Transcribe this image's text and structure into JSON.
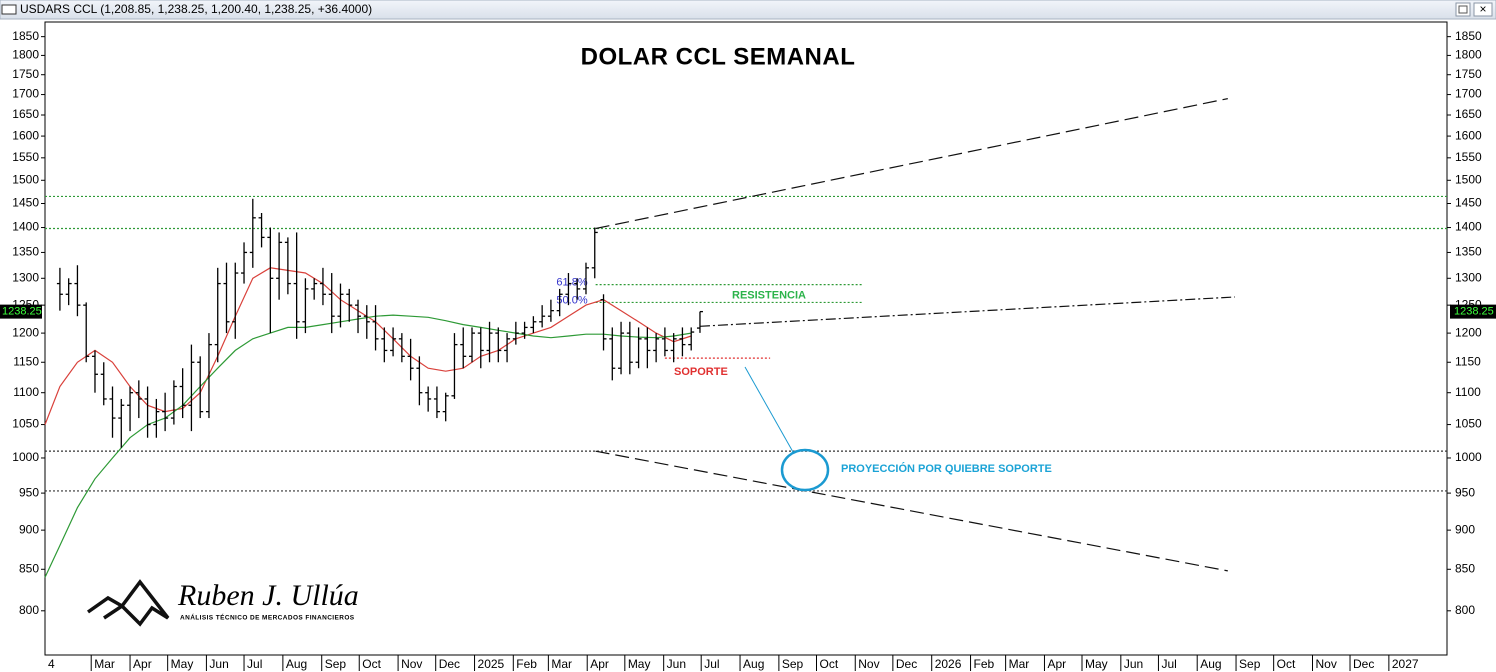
{
  "chart_data": {
    "type": "ohlc",
    "header": "USDARS CCL (1,208.85, 1,238.25, 1,200.40, 1,238.25, +36.4000)",
    "title": "DOLAR CCL SEMANAL",
    "log_scale": true,
    "ylim": [
      750,
      1890
    ],
    "yticks": [
      800,
      850,
      900,
      950,
      1000,
      1050,
      1100,
      1150,
      1200,
      1250,
      1300,
      1350,
      1400,
      1450,
      1500,
      1550,
      1600,
      1650,
      1700,
      1750,
      1800,
      1850
    ],
    "xlim": [
      3.3,
      163.2
    ],
    "xticks": [
      {
        "value": 0,
        "label": "4"
      },
      {
        "value": 8.57,
        "label": "Mar"
      },
      {
        "value": 13,
        "label": "Apr"
      },
      {
        "value": 17.29,
        "label": "May"
      },
      {
        "value": 21.71,
        "label": "Jun"
      },
      {
        "value": 26,
        "label": "Jul"
      },
      {
        "value": 30.43,
        "label": "Aug"
      },
      {
        "value": 34.86,
        "label": "Sep"
      },
      {
        "value": 39.14,
        "label": "Oct"
      },
      {
        "value": 43.57,
        "label": "Nov"
      },
      {
        "value": 47.86,
        "label": "Dec"
      },
      {
        "value": 52.29,
        "label": "2025"
      },
      {
        "value": 56.71,
        "label": "Feb"
      },
      {
        "value": 60.71,
        "label": "Mar"
      },
      {
        "value": 65.14,
        "label": "Apr"
      },
      {
        "value": 69.43,
        "label": "May"
      },
      {
        "value": 73.86,
        "label": "Jun"
      },
      {
        "value": 78.14,
        "label": "Jul"
      },
      {
        "value": 82.57,
        "label": "Aug"
      },
      {
        "value": 87,
        "label": "Sep"
      },
      {
        "value": 91.29,
        "label": "Oct"
      },
      {
        "value": 95.71,
        "label": "Nov"
      },
      {
        "value": 100,
        "label": "Dec"
      },
      {
        "value": 104.43,
        "label": "2026"
      },
      {
        "value": 108.86,
        "label": "Feb"
      },
      {
        "value": 112.86,
        "label": "Mar"
      },
      {
        "value": 117.29,
        "label": "Apr"
      },
      {
        "value": 121.57,
        "label": "May"
      },
      {
        "value": 126,
        "label": "Jun"
      },
      {
        "value": 130.29,
        "label": "Jul"
      },
      {
        "value": 134.71,
        "label": "Aug"
      },
      {
        "value": 139.14,
        "label": "Sep"
      },
      {
        "value": 143.43,
        "label": "Oct"
      },
      {
        "value": 147.86,
        "label": "Nov"
      },
      {
        "value": 152.14,
        "label": "Dec"
      },
      {
        "value": 156.57,
        "label": "2027"
      }
    ],
    "bar_color": "#000000",
    "ohlc": {
      "x": [
        5,
        6,
        7,
        8,
        9,
        10,
        11,
        12,
        13,
        14,
        15,
        16,
        17,
        18,
        19,
        20,
        21,
        22,
        23,
        24,
        25,
        26,
        27,
        28,
        29,
        30,
        31,
        32,
        33,
        34,
        35,
        36,
        37,
        38,
        39,
        40,
        41,
        42,
        43,
        44,
        45,
        46,
        47,
        48,
        49,
        50,
        51,
        52,
        53,
        54,
        55,
        56,
        57,
        58,
        59,
        60,
        61,
        62,
        63,
        64,
        65,
        66,
        67,
        68,
        69,
        70,
        71,
        72,
        73,
        74,
        75,
        76,
        77,
        78
      ],
      "open": [
        1290,
        1270,
        1290,
        1250,
        1160,
        1130,
        1090,
        1060,
        1080,
        1100,
        1090,
        1050,
        1070,
        1060,
        1110,
        1080,
        1150,
        1070,
        1180,
        1290,
        1220,
        1310,
        1350,
        1420,
        1380,
        1300,
        1370,
        1290,
        1220,
        1280,
        1290,
        1270,
        1230,
        1270,
        1250,
        1230,
        1220,
        1190,
        1170,
        1190,
        1160,
        1140,
        1100,
        1090,
        1070,
        1095,
        1180,
        1160,
        1200,
        1170,
        1200,
        1170,
        1190,
        1200,
        1210,
        1220,
        1230,
        1240,
        1270,
        1290,
        1280,
        1320,
        1260,
        1190,
        1140,
        1200,
        1150,
        1190,
        1170,
        1190,
        1170,
        1190,
        1180,
        1208.85
      ],
      "high": [
        1320,
        1300,
        1325,
        1255,
        1170,
        1150,
        1110,
        1090,
        1110,
        1120,
        1110,
        1090,
        1100,
        1120,
        1140,
        1180,
        1160,
        1200,
        1320,
        1330,
        1330,
        1370,
        1460,
        1430,
        1400,
        1390,
        1380,
        1390,
        1300,
        1300,
        1320,
        1310,
        1290,
        1280,
        1260,
        1250,
        1250,
        1210,
        1210,
        1200,
        1190,
        1160,
        1110,
        1110,
        1100,
        1200,
        1210,
        1210,
        1210,
        1220,
        1210,
        1200,
        1220,
        1220,
        1230,
        1250,
        1260,
        1280,
        1310,
        1300,
        1330,
        1400,
        1270,
        1210,
        1220,
        1220,
        1210,
        1210,
        1200,
        1210,
        1200,
        1210,
        1210,
        1238.25
      ],
      "low": [
        1240,
        1250,
        1230,
        1150,
        1100,
        1080,
        1030,
        1015,
        1040,
        1060,
        1030,
        1030,
        1040,
        1050,
        1060,
        1040,
        1060,
        1060,
        1150,
        1200,
        1190,
        1290,
        1320,
        1360,
        1200,
        1260,
        1270,
        1190,
        1200,
        1260,
        1250,
        1200,
        1210,
        1220,
        1200,
        1190,
        1170,
        1150,
        1160,
        1150,
        1120,
        1080,
        1070,
        1060,
        1055,
        1090,
        1140,
        1150,
        1140,
        1150,
        1150,
        1150,
        1180,
        1190,
        1200,
        1210,
        1220,
        1230,
        1250,
        1260,
        1270,
        1300,
        1170,
        1120,
        1130,
        1130,
        1140,
        1140,
        1150,
        1160,
        1150,
        1160,
        1170,
        1200.4
      ],
      "close": [
        1270,
        1290,
        1250,
        1160,
        1130,
        1090,
        1060,
        1080,
        1100,
        1090,
        1050,
        1070,
        1060,
        1110,
        1080,
        1150,
        1070,
        1180,
        1290,
        1220,
        1310,
        1350,
        1420,
        1380,
        1300,
        1370,
        1290,
        1220,
        1280,
        1290,
        1270,
        1230,
        1270,
        1250,
        1230,
        1220,
        1190,
        1170,
        1190,
        1160,
        1140,
        1100,
        1090,
        1070,
        1095,
        1180,
        1160,
        1200,
        1170,
        1200,
        1170,
        1190,
        1200,
        1210,
        1220,
        1230,
        1240,
        1270,
        1290,
        1280,
        1320,
        1390,
        1190,
        1140,
        1200,
        1150,
        1190,
        1170,
        1190,
        1170,
        1190,
        1180,
        1201.85,
        1238.25
      ]
    },
    "moving_averages": [
      {
        "color": "#d9413b",
        "x": [
          3.3,
          5,
          7,
          9,
          11,
          13,
          15,
          17,
          19,
          21,
          23,
          25,
          27,
          29,
          31,
          33,
          35,
          37,
          39,
          41,
          43,
          45,
          47,
          49,
          51,
          53,
          55,
          57,
          59,
          61,
          63,
          65,
          67,
          69,
          71,
          73,
          75,
          77
        ],
        "values": [
          1050,
          1110,
          1150,
          1170,
          1150,
          1110,
          1080,
          1070,
          1075,
          1100,
          1160,
          1230,
          1300,
          1320,
          1315,
          1310,
          1290,
          1260,
          1240,
          1220,
          1190,
          1160,
          1140,
          1135,
          1140,
          1160,
          1170,
          1190,
          1200,
          1210,
          1230,
          1250,
          1260,
          1240,
          1220,
          1200,
          1185,
          1195
        ]
      },
      {
        "color": "#2e9a36",
        "x": [
          3.3,
          5,
          7,
          9,
          11,
          13,
          15,
          17,
          19,
          21,
          23,
          25,
          27,
          29,
          31,
          33,
          35,
          37,
          39,
          41,
          43,
          45,
          47,
          49,
          51,
          53,
          55,
          57,
          59,
          61,
          63,
          65,
          67,
          69,
          71,
          73,
          75,
          77
        ],
        "values": [
          840,
          880,
          930,
          970,
          1000,
          1030,
          1050,
          1060,
          1080,
          1110,
          1140,
          1170,
          1190,
          1200,
          1210,
          1210,
          1215,
          1220,
          1225,
          1230,
          1232,
          1230,
          1228,
          1222,
          1215,
          1210,
          1205,
          1200,
          1195,
          1192,
          1195,
          1198,
          1198,
          1195,
          1193,
          1192,
          1195,
          1200
        ]
      }
    ],
    "hlines": [
      {
        "value": 1465,
        "color": "#2e9a36"
      },
      {
        "value": 1398,
        "color": "#2e9a36"
      },
      {
        "value": 1010,
        "color": "#333333"
      },
      {
        "value": 953,
        "color": "#333333"
      }
    ],
    "fib_levels": [
      {
        "value": 1288,
        "label": "61.8%",
        "x": [
          66.1,
          96.5
        ],
        "color": "#2e9a36"
      },
      {
        "value": 1255,
        "label": "50.0%",
        "x": [
          66.1,
          96.5
        ],
        "color": "#2e9a36"
      }
    ],
    "support": {
      "value": 1157,
      "x": [
        74,
        86
      ],
      "color": "#e03030"
    },
    "trendlines": [
      {
        "x": [
          66.1,
          138.2
        ],
        "y": [
          1398,
          1690
        ],
        "style": "dash"
      },
      {
        "x": [
          66.1,
          138.2
        ],
        "y": [
          1010,
          848
        ],
        "style": "dash"
      },
      {
        "x": [
          78,
          139
        ],
        "y": [
          1212,
          1265
        ],
        "style": "dashdot"
      }
    ],
    "annotations": {
      "resistance": "RESISTENCIA",
      "support": "SOPORTE",
      "projection": "PROYECCIÓN POR QUIEBRE SOPORTE"
    },
    "price_tag": 1238.25,
    "logo": {
      "name": "Ruben J. Ullúa",
      "tagline": "ANÁLISIS TÉCNICO DE MERCADOS FINANCIEROS"
    }
  }
}
